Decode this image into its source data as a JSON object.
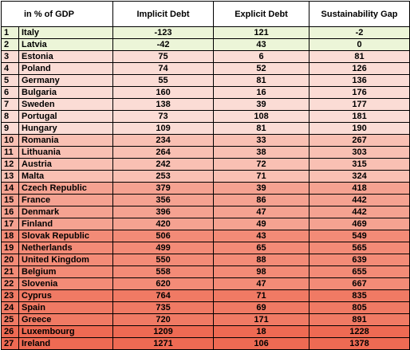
{
  "headers": [
    "in % of GDP",
    "Implicit Debt",
    "Explicit Debt",
    "Sustainability Gap"
  ],
  "colors": {
    "light_green": "#ecf5d8",
    "pink_1": "#fbdcd5",
    "pink_2": "#f9c9bd",
    "salmon_1": "#f5aa9a",
    "salmon_2": "#f38873",
    "red_1": "#f06e58"
  },
  "rows": [
    {
      "rank": "1",
      "country": "Italy",
      "implicit": "-123",
      "explicit": "121",
      "gap": "-2",
      "color": "#ecf5d8"
    },
    {
      "rank": "2",
      "country": "Latvia",
      "implicit": "-42",
      "explicit": "43",
      "gap": "0",
      "color": "#ecf5d8"
    },
    {
      "rank": "3",
      "country": "Estonia",
      "implicit": "75",
      "explicit": "6",
      "gap": "81",
      "color": "#fbdcd5"
    },
    {
      "rank": "4",
      "country": "Poland",
      "implicit": "74",
      "explicit": "52",
      "gap": "126",
      "color": "#fbdcd5"
    },
    {
      "rank": "5",
      "country": "Germany",
      "implicit": "55",
      "explicit": "81",
      "gap": "136",
      "color": "#fbdcd5"
    },
    {
      "rank": "6",
      "country": "Bulgaria",
      "implicit": "160",
      "explicit": "16",
      "gap": "176",
      "color": "#fbdcd5"
    },
    {
      "rank": "7",
      "country": "Sweden",
      "implicit": "138",
      "explicit": "39",
      "gap": "177",
      "color": "#fbdcd5"
    },
    {
      "rank": "8",
      "country": "Portugal",
      "implicit": "73",
      "explicit": "108",
      "gap": "181",
      "color": "#fbdcd5"
    },
    {
      "rank": "9",
      "country": "Hungary",
      "implicit": "109",
      "explicit": "81",
      "gap": "190",
      "color": "#fbdcd5"
    },
    {
      "rank": "10",
      "country": "Romania",
      "implicit": "234",
      "explicit": "33",
      "gap": "267",
      "color": "#f9c0b3"
    },
    {
      "rank": "11",
      "country": "Lithuania",
      "implicit": "264",
      "explicit": "38",
      "gap": "303",
      "color": "#f9c0b3"
    },
    {
      "rank": "12",
      "country": "Austria",
      "implicit": "242",
      "explicit": "72",
      "gap": "315",
      "color": "#f9c0b3"
    },
    {
      "rank": "13",
      "country": "Malta",
      "implicit": "253",
      "explicit": "71",
      "gap": "324",
      "color": "#f9c0b3"
    },
    {
      "rank": "14",
      "country": "Czech Republic",
      "implicit": "379",
      "explicit": "39",
      "gap": "418",
      "color": "#f5a291"
    },
    {
      "rank": "15",
      "country": "France",
      "implicit": "356",
      "explicit": "86",
      "gap": "442",
      "color": "#f5a291"
    },
    {
      "rank": "16",
      "country": "Denmark",
      "implicit": "396",
      "explicit": "47",
      "gap": "442",
      "color": "#f5a291"
    },
    {
      "rank": "17",
      "country": "Finland",
      "implicit": "420",
      "explicit": "49",
      "gap": "469",
      "color": "#f5a291"
    },
    {
      "rank": "18",
      "country": "Slovak Republic",
      "implicit": "506",
      "explicit": "43",
      "gap": "549",
      "color": "#f38b77"
    },
    {
      "rank": "19",
      "country": "Netherlands",
      "implicit": "499",
      "explicit": "65",
      "gap": "565",
      "color": "#f38b77"
    },
    {
      "rank": "20",
      "country": "United Kingdom",
      "implicit": "550",
      "explicit": "88",
      "gap": "639",
      "color": "#f38b77"
    },
    {
      "rank": "21",
      "country": "Belgium",
      "implicit": "558",
      "explicit": "98",
      "gap": "655",
      "color": "#f38b77"
    },
    {
      "rank": "22",
      "country": "Slovenia",
      "implicit": "620",
      "explicit": "47",
      "gap": "667",
      "color": "#f38b77"
    },
    {
      "rank": "23",
      "country": "Cyprus",
      "implicit": "764",
      "explicit": "71",
      "gap": "835",
      "color": "#f07a64"
    },
    {
      "rank": "24",
      "country": "Spain",
      "implicit": "735",
      "explicit": "69",
      "gap": "805",
      "color": "#f07a64"
    },
    {
      "rank": "25",
      "country": "Greece",
      "implicit": "720",
      "explicit": "171",
      "gap": "891",
      "color": "#f07a64"
    },
    {
      "rank": "26",
      "country": "Luxembourg",
      "implicit": "1209",
      "explicit": "18",
      "gap": "1228",
      "color": "#ee6a53"
    },
    {
      "rank": "27",
      "country": "Ireland",
      "implicit": "1271",
      "explicit": "106",
      "gap": "1378",
      "color": "#ee6a53"
    }
  ]
}
